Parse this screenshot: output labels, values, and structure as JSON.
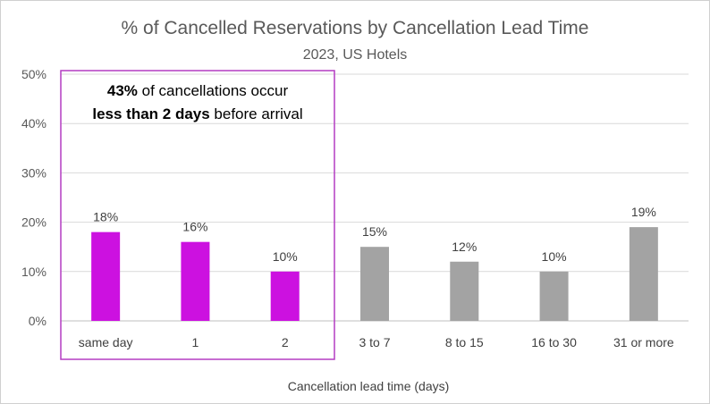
{
  "chart_data": {
    "type": "bar",
    "title": "% of Cancelled Reservations by Cancellation Lead Time",
    "subtitle": "2023, US Hotels",
    "xlabel": "Cancellation lead time (days)",
    "ylabel": "",
    "ylim": [
      0,
      50
    ],
    "yticks": [
      "0%",
      "10%",
      "20%",
      "30%",
      "40%",
      "50%"
    ],
    "ytick_values": [
      0,
      10,
      20,
      30,
      40,
      50
    ],
    "grid": true,
    "categories": [
      "same day",
      "1",
      "2",
      "3 to 7",
      "8 to 15",
      "16 to 30",
      "31 or more"
    ],
    "values": [
      18,
      16,
      10,
      15,
      12,
      10,
      19
    ],
    "value_labels": [
      "18%",
      "16%",
      "10%",
      "15%",
      "12%",
      "10%",
      "19%"
    ],
    "highlighted": [
      true,
      true,
      true,
      false,
      false,
      false,
      false
    ],
    "colors": {
      "highlight": "#cc11e0",
      "default": "#a3a3a3",
      "annotation_box": "#b43cc2"
    },
    "annotation": {
      "line1_bold": "43%",
      "line1_rest": " of cancellations occur",
      "line2_bold": "less than 2 days",
      "line2_rest": " before arrival"
    }
  }
}
